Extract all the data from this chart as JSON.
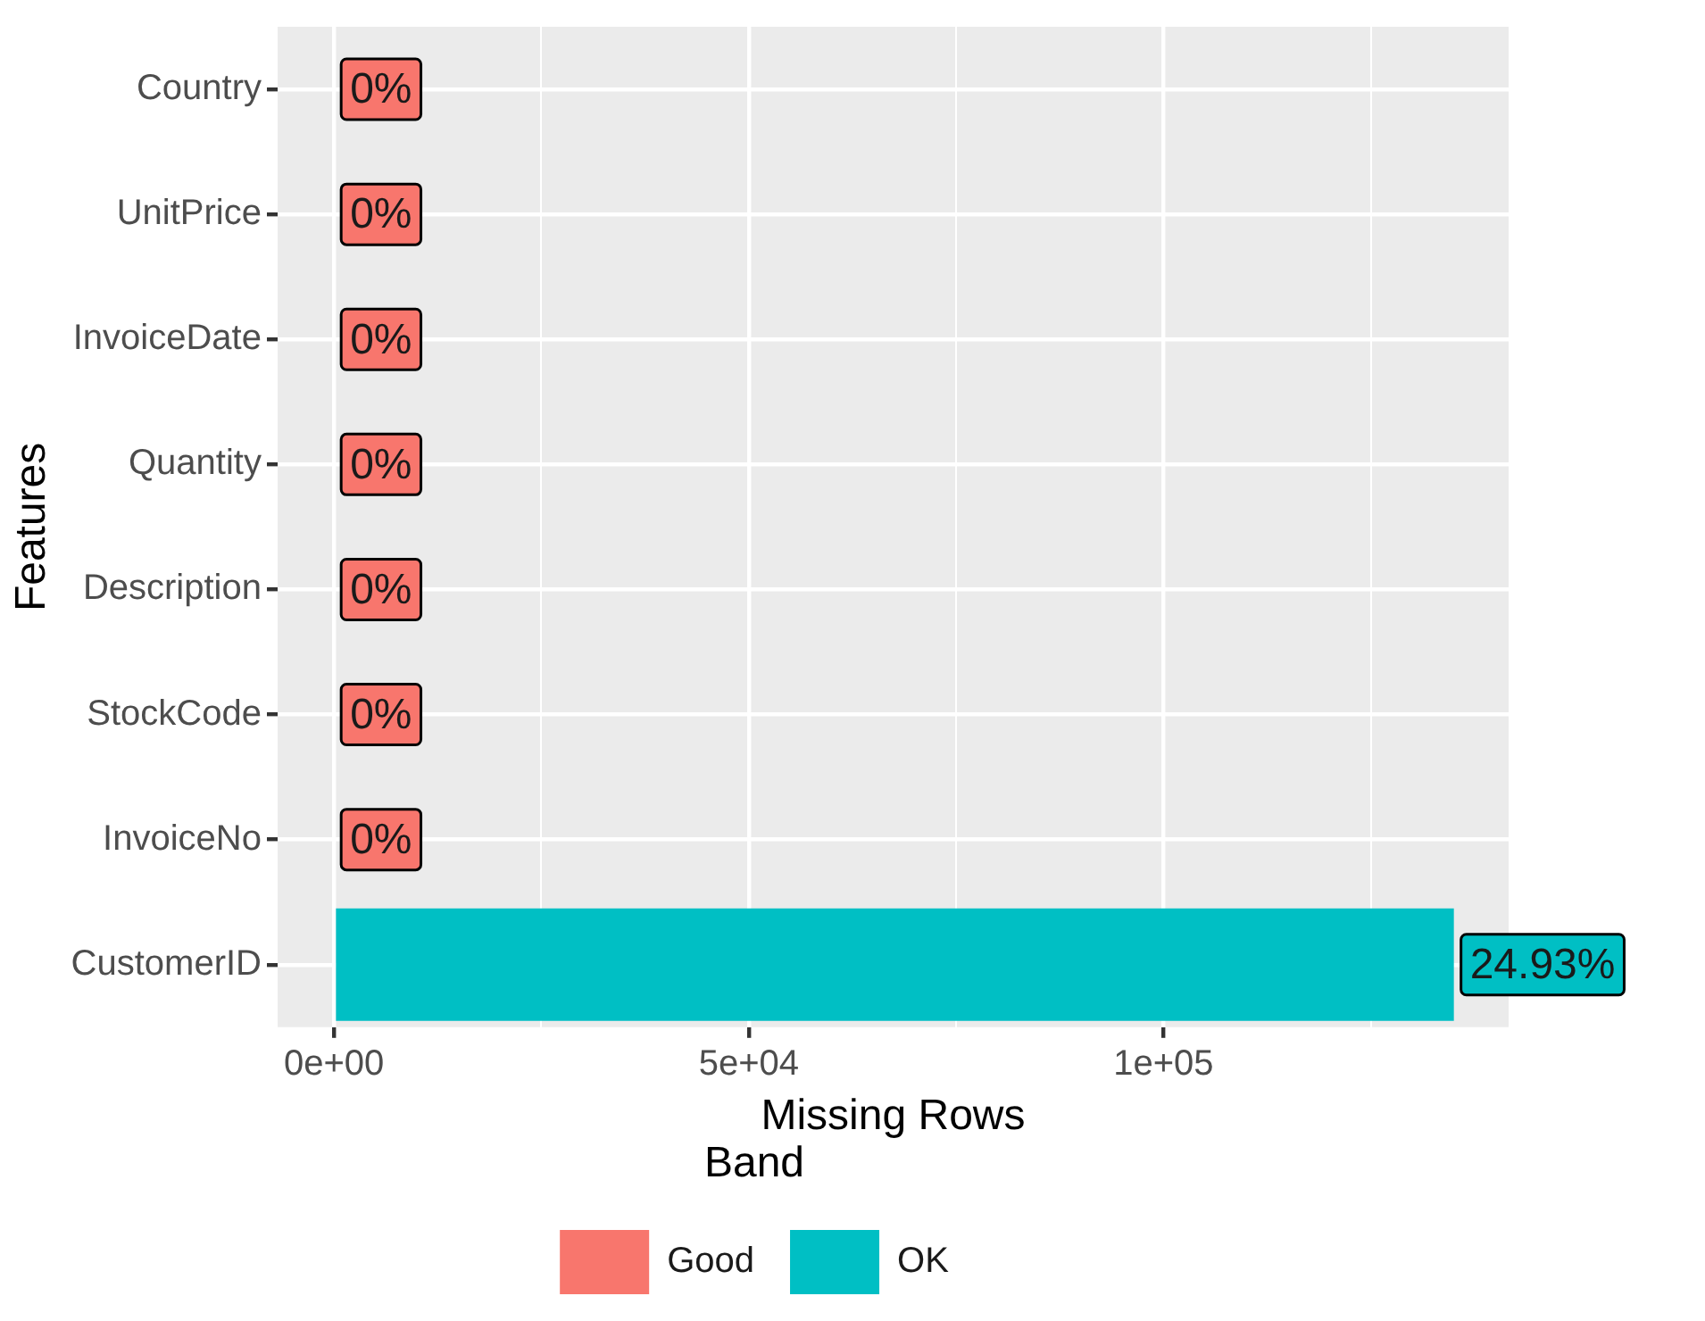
{
  "chart_data": {
    "type": "bar",
    "orientation": "horizontal",
    "xlabel": "Missing Rows",
    "ylabel": "Features",
    "legend_title": "Band",
    "legend": "bottom",
    "grid": true,
    "categories": [
      "Country",
      "UnitPrice",
      "InvoiceDate",
      "Quantity",
      "Description",
      "StockCode",
      "InvoiceNo",
      "CustomerID"
    ],
    "series": [
      {
        "name": "Good",
        "color": "#f8766d",
        "values": [
          0,
          0,
          0,
          0,
          0,
          0,
          0,
          null
        ],
        "value_labels": [
          "0%",
          "0%",
          "0%",
          "0%",
          "0%",
          "0%",
          "0%",
          null
        ]
      },
      {
        "name": "OK",
        "color": "#00bfc4",
        "values": [
          null,
          null,
          null,
          null,
          null,
          null,
          null,
          135000
        ]
      }
    ],
    "annotations": [
      {
        "text": "24.93%",
        "x": 135000,
        "y": "CustomerID"
      }
    ],
    "xlim": [
      -6800,
      141600
    ],
    "xticks": [
      {
        "value": 0,
        "label": "0e+00"
      },
      {
        "value": 25000,
        "label": null
      },
      {
        "value": 50000,
        "label": "5e+04"
      },
      {
        "value": 75000,
        "label": null
      },
      {
        "value": 100000,
        "label": "1e+05"
      },
      {
        "value": 125000,
        "label": null
      }
    ]
  }
}
